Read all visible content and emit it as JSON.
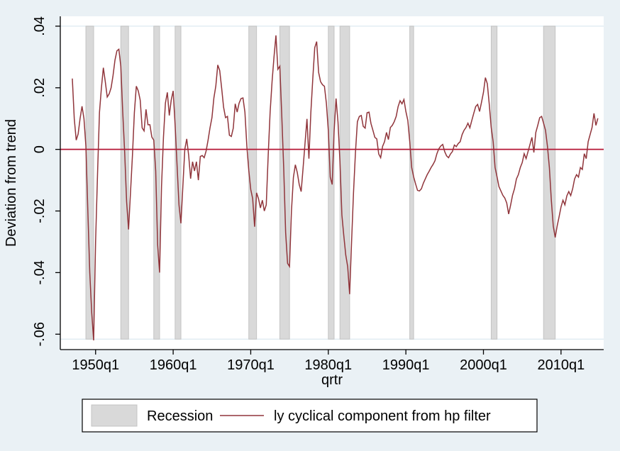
{
  "figure": {
    "background_color": "#eaf1f5",
    "plot_background_color": "#ffffff",
    "axis_color": "#000000",
    "gridline_color": "#dce9f1"
  },
  "chart_data": {
    "type": "line",
    "title": "",
    "xlabel": "qrtr",
    "ylabel": "Deviation from trend",
    "x_tick_labels": [
      "1950q1",
      "1960q1",
      "1970q1",
      "1980q1",
      "1990q1",
      "2000q1",
      "2010q1"
    ],
    "x_tick_years": [
      1950,
      1960,
      1970,
      1980,
      1990,
      2000,
      2010
    ],
    "y_tick_labels": [
      ".04",
      ".02",
      "0",
      "-.02",
      "-.04",
      "-.06"
    ],
    "y_tick_values": [
      0.04,
      0.02,
      0,
      -0.02,
      -0.04,
      -0.06
    ],
    "ylim": [
      -0.065,
      0.0432
    ],
    "xlim_years": [
      1945.45,
      2015.5
    ],
    "grid_values": [
      0.04,
      -0.0616
    ],
    "zero_line_value": 0,
    "zero_line_color": "#b51635",
    "series": [
      {
        "name": "ly cyclical component from hp filter",
        "color": "#90353b",
        "x_start_year": 1947.0,
        "x_step_years": 0.25,
        "values": [
          0.023,
          0.01,
          0.003,
          0.005,
          0.01,
          0.014,
          0.01,
          0.001,
          -0.02,
          -0.04,
          -0.053,
          -0.062,
          -0.03,
          -0.008,
          0.012,
          0.02,
          0.0265,
          0.022,
          0.017,
          0.018,
          0.02,
          0.024,
          0.029,
          0.032,
          0.0325,
          0.027,
          0.012,
          -0.001,
          -0.017,
          -0.026,
          -0.014,
          -0.002,
          0.012,
          0.0205,
          0.019,
          0.016,
          0.007,
          0.006,
          0.013,
          0.008,
          0.008,
          0.004,
          0.003,
          -0.007,
          -0.031,
          -0.04,
          -0.012,
          0.004,
          0.015,
          0.0185,
          0.011,
          0.016,
          0.019,
          0.008,
          -0.005,
          -0.018,
          -0.024,
          -0.012,
          0.0,
          0.0034,
          -0.002,
          -0.0095,
          -0.004,
          -0.007,
          -0.004,
          -0.01,
          -0.0023,
          -0.002,
          -0.0027,
          -0.0005,
          0.003,
          0.007,
          0.0103,
          0.0167,
          0.0206,
          0.0274,
          0.0256,
          0.0199,
          0.0137,
          0.0103,
          0.0107,
          0.0046,
          0.0042,
          0.0069,
          0.0148,
          0.0121,
          0.015,
          0.0165,
          0.0167,
          0.0121,
          0.001,
          -0.0069,
          -0.013,
          -0.016,
          -0.0251,
          -0.0141,
          -0.016,
          -0.019,
          -0.0165,
          -0.02,
          -0.018,
          -0.002,
          0.0121,
          0.022,
          0.03,
          0.037,
          0.026,
          0.027,
          0.011,
          -0.006,
          -0.027,
          -0.037,
          -0.038,
          -0.02,
          -0.0091,
          -0.005,
          -0.0075,
          -0.0114,
          -0.0137,
          -0.006,
          0.002,
          0.0099,
          -0.003,
          0.012,
          0.023,
          0.033,
          0.035,
          0.025,
          0.022,
          0.021,
          0.0205,
          0.015,
          0.0062,
          -0.009,
          -0.0114,
          0.006,
          0.0165,
          0.0089,
          -0.0039,
          -0.0213,
          -0.0281,
          -0.0343,
          -0.0381,
          -0.047,
          -0.03,
          -0.014,
          -0.001,
          0.009,
          0.0107,
          0.011,
          0.0075,
          0.0069,
          0.0119,
          0.0121,
          0.0084,
          0.0062,
          0.0039,
          0.0034,
          -0.0015,
          -0.0027,
          0.001,
          0.0025,
          0.0055,
          0.0032,
          0.0071,
          0.0078,
          0.009,
          0.0107,
          0.0139,
          0.0158,
          0.0148,
          0.0162,
          0.0123,
          0.0094,
          0.0025,
          -0.0059,
          -0.0089,
          -0.0112,
          -0.0133,
          -0.0135,
          -0.0128,
          -0.011,
          -0.0096,
          -0.0082,
          -0.0071,
          -0.0059,
          -0.0049,
          -0.0037,
          -0.0014,
          0.0002,
          0.0011,
          0.0016,
          -0.0007,
          -0.0021,
          -0.0027,
          -0.0015,
          -0.0007,
          0.0014,
          0.0009,
          0.0019,
          0.0025,
          0.0048,
          0.0062,
          0.0071,
          0.0085,
          0.007,
          0.0094,
          0.0117,
          0.0139,
          0.0146,
          0.0123,
          0.0153,
          0.0185,
          0.0233,
          0.0213,
          0.0146,
          0.0071,
          0.0025,
          -0.0059,
          -0.0089,
          -0.0121,
          -0.0135,
          -0.0149,
          -0.0158,
          -0.0174,
          -0.021,
          -0.0181,
          -0.0149,
          -0.0128,
          -0.0096,
          -0.0082,
          -0.0059,
          -0.0043,
          -0.0014,
          -0.003,
          -0.0007,
          0.0016,
          0.0039,
          -0.001,
          0.0055,
          0.0078,
          0.0103,
          0.0107,
          0.0085,
          0.0062,
          0.001,
          -0.0059,
          -0.0165,
          -0.0249,
          -0.0286,
          -0.0249,
          -0.0219,
          -0.0187,
          -0.0165,
          -0.018,
          -0.0151,
          -0.0137,
          -0.015,
          -0.0128,
          -0.0096,
          -0.0082,
          -0.009,
          -0.0059,
          -0.0065,
          -0.0014,
          -0.003,
          0.0025,
          0.0048,
          0.0071,
          0.0117,
          0.0078,
          0.0101
        ]
      }
    ],
    "recession_bands": {
      "label": "Recession",
      "fill_color": "#d9d9d9",
      "border_color": "#c4c4c4",
      "top_value": 0.04,
      "bottom_value": -0.0616,
      "periods_years": [
        [
          1948.75,
          1949.75
        ],
        [
          1953.25,
          1954.25
        ],
        [
          1957.5,
          1958.25
        ],
        [
          1960.25,
          1961.0
        ],
        [
          1969.75,
          1970.75
        ],
        [
          1973.75,
          1975.0
        ],
        [
          1980.0,
          1980.75
        ],
        [
          1981.5,
          1982.75
        ],
        [
          1990.5,
          1991.0
        ],
        [
          2001.0,
          2001.75
        ],
        [
          2007.75,
          2009.25
        ]
      ]
    },
    "legend": {
      "position": "bottom",
      "entries": [
        {
          "label": "Recession",
          "swatch": "filled-box"
        },
        {
          "label": "ly cyclical component from hp filter",
          "swatch": "line"
        }
      ]
    },
    "grid": "partial"
  }
}
